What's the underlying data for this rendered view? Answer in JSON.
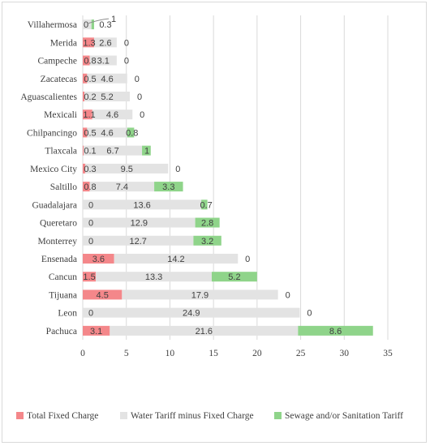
{
  "chart_data": {
    "type": "bar",
    "orientation": "horizontal",
    "stacked": true,
    "categories": [
      "Villahermosa",
      "Merida",
      "Campeche",
      "Zacatecas",
      "Aguascalientes",
      "Mexicali",
      "Chilpancingo",
      "Tlaxcala",
      "Mexico City",
      "Saltillo",
      "Guadalajara",
      "Queretaro",
      "Monterrey",
      "Ensenada",
      "Cancun",
      "Tijuana",
      "Leon",
      "Pachuca"
    ],
    "series": [
      {
        "name": "Total Fixed Charge",
        "color": "#f4878a",
        "values": [
          0,
          1.3,
          0.8,
          0.5,
          0.2,
          1.1,
          0.5,
          0.1,
          0.3,
          0.8,
          0,
          0,
          0,
          3.6,
          1.5,
          4.5,
          0,
          3.1
        ]
      },
      {
        "name": "Water Tariff minus Fixed Charge",
        "color": "#e3e3e3",
        "values": [
          1,
          2.6,
          3.1,
          4.6,
          5.2,
          4.6,
          4.6,
          6.7,
          9.5,
          7.4,
          13.6,
          12.9,
          12.7,
          14.2,
          13.3,
          17.9,
          24.9,
          21.6
        ]
      },
      {
        "name": "Sewage and/or Sanitation Tariff",
        "color": "#8fd48a",
        "values": [
          0.3,
          0,
          0,
          0,
          0,
          0,
          0.8,
          1,
          0,
          3.3,
          0.7,
          2.8,
          3.2,
          0,
          5.2,
          0,
          0,
          8.6
        ]
      }
    ],
    "data_labels": [
      [
        "0",
        "1",
        "0.3"
      ],
      [
        "1.3",
        "2.6",
        "0"
      ],
      [
        "0.8",
        "3.1",
        "0"
      ],
      [
        "0.5",
        "4.6",
        "0"
      ],
      [
        "0.2",
        "5.2",
        "0"
      ],
      [
        "1.1",
        "4.6",
        "0"
      ],
      [
        "0.5",
        "4.6",
        "0.8"
      ],
      [
        "0.1",
        "6.7",
        "1"
      ],
      [
        "0.3",
        "9.5",
        "0"
      ],
      [
        "0.8",
        "7.4",
        "3.3"
      ],
      [
        "0",
        "13.6",
        "0.7"
      ],
      [
        "0",
        "12.9",
        "2.8"
      ],
      [
        "0",
        "12.7",
        "3.2"
      ],
      [
        "3.6",
        "14.2",
        "0"
      ],
      [
        "1.5",
        "13.3",
        "5.2"
      ],
      [
        "4.5",
        "17.9",
        "0"
      ],
      [
        "0",
        "24.9",
        "0"
      ],
      [
        "3.1",
        "21.6",
        "8.6"
      ]
    ],
    "x_ticks": [
      "0",
      "5",
      "10",
      "15",
      "20",
      "25",
      "30",
      "35"
    ],
    "xlim": [
      0,
      35
    ],
    "grid": true,
    "legend_position": "bottom",
    "title": "",
    "xlabel": "",
    "ylabel": ""
  }
}
